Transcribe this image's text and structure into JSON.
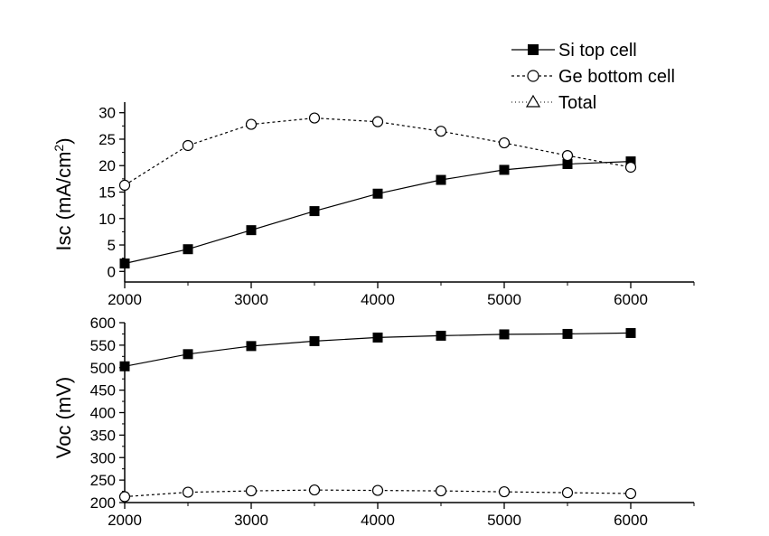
{
  "chart_data": [
    {
      "type": "line",
      "ylabel": "Isc (mA/cm2)",
      "ylabel_main": "Isc (mA/cm",
      "ylabel_sup": "2",
      "ylabel_close": ")",
      "xlim": [
        2000,
        6500
      ],
      "ylim": [
        -2,
        32
      ],
      "xticks": [
        2000,
        3000,
        4000,
        5000,
        6000
      ],
      "xminor": [
        2500,
        3500,
        4500,
        5500,
        6500
      ],
      "yticks": [
        0,
        5,
        10,
        15,
        20,
        25,
        30
      ],
      "grid": false,
      "x": [
        2000,
        2500,
        3000,
        3500,
        4000,
        4500,
        5000,
        5500,
        6000
      ],
      "series": [
        {
          "name": "Si top cell",
          "marker": "filled-square",
          "line": "solid",
          "values": [
            1.5,
            4.2,
            7.8,
            11.4,
            14.7,
            17.3,
            19.2,
            20.3,
            20.8
          ]
        },
        {
          "name": "Ge bottom cell",
          "marker": "open-circle",
          "line": "dashed",
          "values": [
            16.3,
            23.8,
            27.8,
            29.0,
            28.3,
            26.5,
            24.3,
            21.9,
            19.7
          ]
        }
      ]
    },
    {
      "type": "line",
      "ylabel": "Voc (mV)",
      "xlim": [
        2000,
        6500
      ],
      "ylim": [
        200,
        600
      ],
      "xticks": [
        2000,
        3000,
        4000,
        5000,
        6000
      ],
      "xminor": [
        2500,
        3500,
        4500,
        5500,
        6500
      ],
      "yticks": [
        200,
        250,
        300,
        350,
        400,
        450,
        500,
        550,
        600
      ],
      "grid": false,
      "x": [
        2000,
        2500,
        3000,
        3500,
        4000,
        4500,
        5000,
        5500,
        6000
      ],
      "series": [
        {
          "name": "Si top cell",
          "marker": "filled-square",
          "line": "solid",
          "values": [
            503,
            530,
            548,
            559,
            567,
            571,
            574,
            575,
            577
          ]
        },
        {
          "name": "Ge bottom cell",
          "marker": "open-circle",
          "line": "dashed",
          "values": [
            213,
            223,
            226,
            228,
            227,
            226,
            224,
            222,
            220
          ]
        }
      ]
    }
  ],
  "legend": {
    "placement": "top-right",
    "entries": [
      {
        "label": "Si top cell",
        "marker": "filled-square",
        "line": "solid"
      },
      {
        "label": "Ge bottom cell",
        "marker": "open-circle",
        "line": "dashed"
      },
      {
        "label": "Total",
        "marker": "open-triangle",
        "line": "dotted"
      }
    ]
  }
}
